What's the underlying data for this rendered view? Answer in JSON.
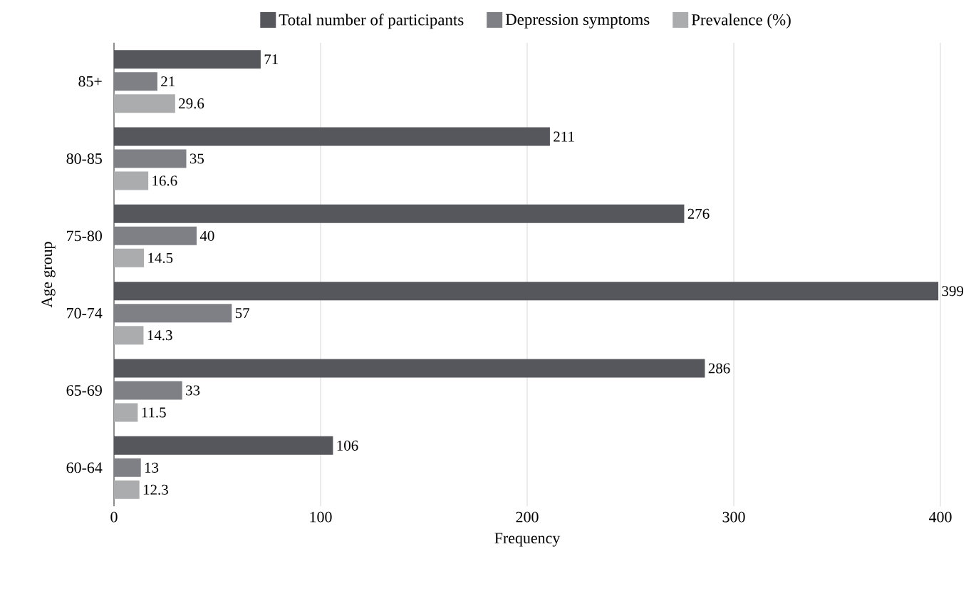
{
  "chart_data": {
    "type": "bar",
    "orientation": "horizontal",
    "xlabel": "Frequency",
    "ylabel": "Age group",
    "categories": [
      "85+",
      "80-85",
      "75-80",
      "70-74",
      "65-69",
      "60-64"
    ],
    "series": [
      {
        "name": "Total number of participants",
        "color": "#55575c",
        "values": [
          71,
          211,
          276,
          399,
          286,
          106
        ]
      },
      {
        "name": "Depression symptoms",
        "color": "#7e8085",
        "values": [
          21,
          35,
          40,
          57,
          33,
          13
        ]
      },
      {
        "name": "Prevalence (%)",
        "color": "#aaacae",
        "values": [
          29.6,
          16.6,
          14.5,
          14.3,
          11.5,
          12.3
        ]
      }
    ],
    "xlim": [
      0,
      400
    ],
    "xticks": [
      0,
      100,
      200,
      300,
      400
    ],
    "grid": "x",
    "legend": "top",
    "data_labels": true
  }
}
